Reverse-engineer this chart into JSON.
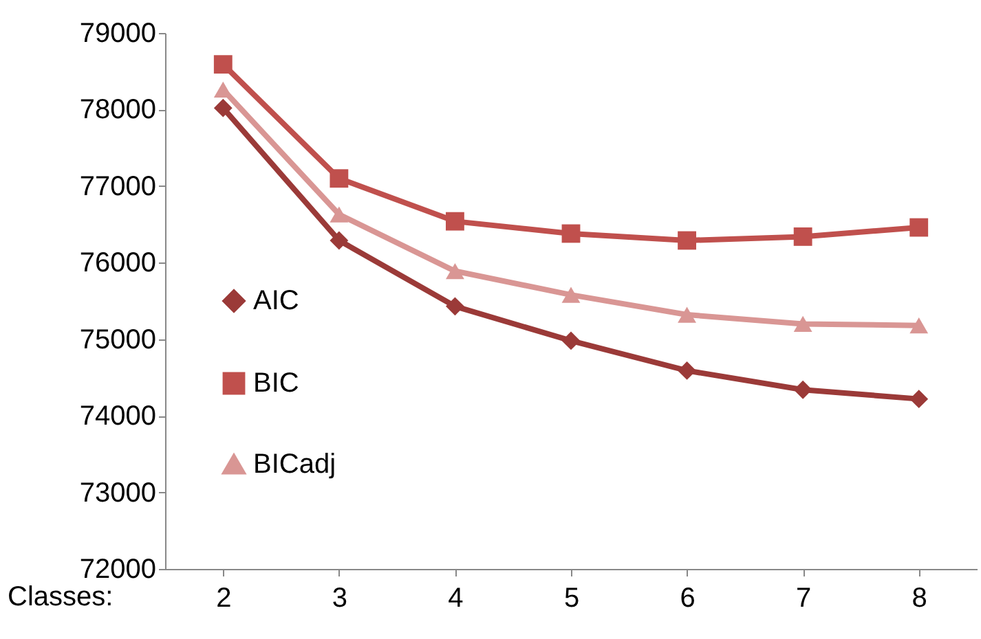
{
  "chart_data": {
    "type": "line",
    "xlabel": "Classes:",
    "categories": [
      "2",
      "3",
      "4",
      "5",
      "6",
      "7",
      "8"
    ],
    "series": [
      {
        "name": "AIC",
        "color": "#9b3a38",
        "marker": "diamond",
        "values": [
          78020,
          76290,
          75430,
          74980,
          74590,
          74340,
          74220
        ]
      },
      {
        "name": "BIC",
        "color": "#c0504d",
        "marker": "square",
        "values": [
          78590,
          77100,
          76540,
          76380,
          76290,
          76340,
          76460
        ]
      },
      {
        "name": "BICadj",
        "color": "#d99694",
        "marker": "triangle",
        "values": [
          78260,
          76630,
          75890,
          75580,
          75320,
          75200,
          75180
        ]
      }
    ],
    "ylim": [
      72000,
      79000
    ],
    "yticks": [
      72000,
      73000,
      74000,
      75000,
      76000,
      77000,
      78000,
      79000
    ],
    "grid": false,
    "legend": "left",
    "line_style": "solid"
  }
}
